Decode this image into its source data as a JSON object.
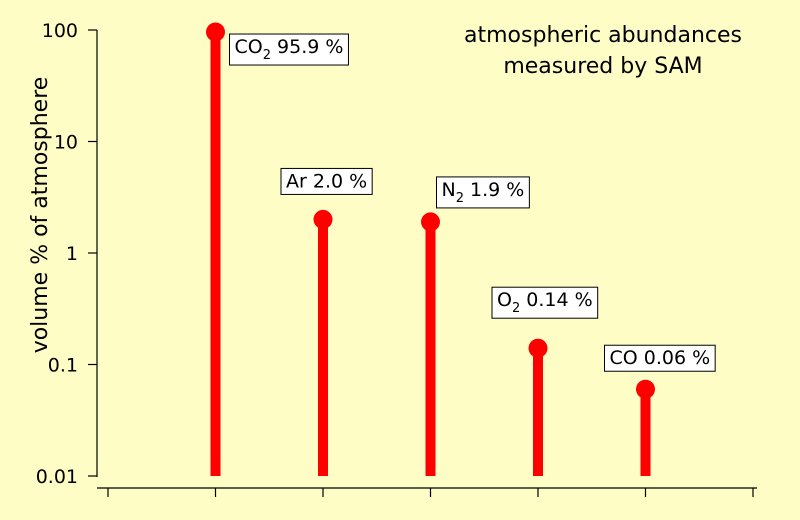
{
  "chart_data": {
    "type": "lollipop",
    "title_lines": [
      "atmospheric abundances",
      "measured by SAM"
    ],
    "xlabel": "",
    "ylabel": "volume % of atmosphere",
    "yscale": "log",
    "ylim": [
      0.01,
      100
    ],
    "y_ticks": [
      {
        "value": 0.01,
        "label": "0.01"
      },
      {
        "value": 0.1,
        "label": "0.1"
      },
      {
        "value": 1,
        "label": "1"
      },
      {
        "value": 10,
        "label": "10"
      },
      {
        "value": 100,
        "label": "100"
      }
    ],
    "grid": false,
    "colors": {
      "stem": "#ff0000",
      "background": "#fefdc6"
    },
    "points": [
      {
        "species": "CO2",
        "base": "CO",
        "sub": "2",
        "value": 95.9,
        "value_label": " 95.9 %"
      },
      {
        "species": "Ar",
        "base": "Ar",
        "sub": "",
        "value": 2.0,
        "value_label": " 2.0 %"
      },
      {
        "species": "N2",
        "base": "N",
        "sub": "2",
        "value": 1.9,
        "value_label": " 1.9 %"
      },
      {
        "species": "O2",
        "base": "O",
        "sub": "2",
        "value": 0.14,
        "value_label": " 0.14 %"
      },
      {
        "species": "CO",
        "base": "CO",
        "sub": "",
        "value": 0.06,
        "value_label": " 0.06 %"
      }
    ]
  }
}
